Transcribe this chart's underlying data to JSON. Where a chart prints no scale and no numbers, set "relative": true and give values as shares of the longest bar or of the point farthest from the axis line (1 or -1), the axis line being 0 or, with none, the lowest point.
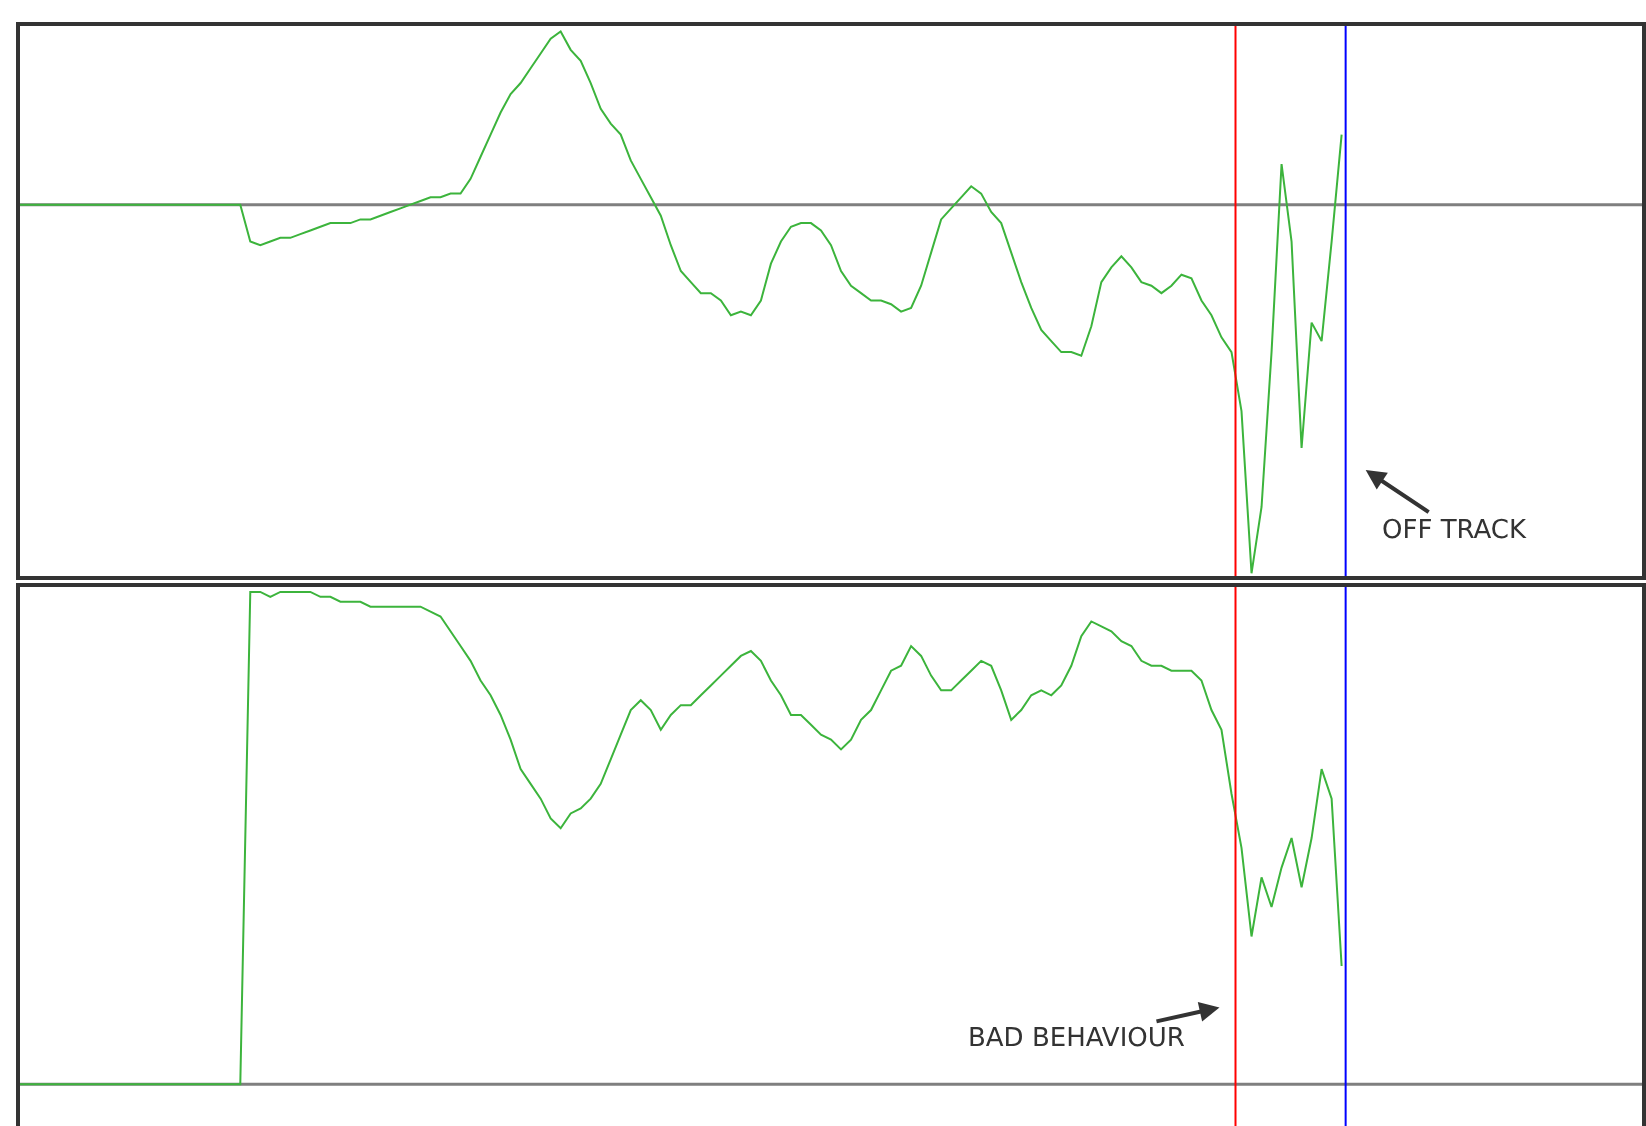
{
  "chart_data": [
    {
      "type": "line",
      "relative": true,
      "line_style": "solid",
      "categories": [
        null,
        null,
        null,
        null,
        null,
        null,
        null,
        null,
        null,
        null,
        null,
        null,
        null,
        null,
        null,
        null,
        null,
        null,
        null,
        null,
        null,
        null,
        null,
        null,
        null,
        null,
        null,
        null,
        null,
        null,
        null,
        null,
        null,
        null,
        null,
        null,
        null,
        null,
        null,
        null,
        null,
        null,
        null,
        null,
        null,
        null,
        null,
        null,
        null,
        null,
        null,
        null,
        null,
        null,
        null,
        null,
        null,
        null,
        null,
        null,
        null,
        null,
        null,
        null,
        null,
        null,
        null,
        null,
        null,
        null,
        null,
        null,
        null,
        null,
        null,
        null,
        null,
        null,
        null,
        null,
        null,
        null,
        null,
        null,
        null,
        null,
        null,
        null,
        null,
        null,
        null,
        null,
        null,
        null,
        null,
        null,
        null,
        null,
        null,
        null,
        null,
        null,
        null,
        null,
        null,
        null,
        null,
        null,
        null,
        null,
        null,
        null,
        null,
        null,
        null,
        null,
        null,
        null,
        null,
        null,
        null,
        null,
        null,
        null,
        null,
        null,
        null,
        null,
        null,
        null,
        null,
        null,
        null,
        null,
        null,
        null,
        null,
        null,
        null,
        null,
        null,
        null,
        null,
        null,
        null,
        null,
        null,
        null,
        null,
        null,
        null,
        null,
        null,
        null,
        null,
        null,
        null,
        null,
        null,
        null,
        null,
        null,
        null
      ],
      "series": [
        {
          "color": "#3cb43c",
          "values": [
            0,
            0,
            0,
            0,
            0,
            0,
            0,
            0,
            0,
            0,
            0,
            0,
            0,
            0,
            0,
            0,
            0,
            0,
            0,
            0,
            0,
            0,
            0,
            -0.1,
            -0.11,
            -0.1,
            -0.09,
            -0.09,
            -0.08,
            -0.07,
            -0.06,
            -0.05,
            -0.05,
            -0.05,
            -0.04,
            -0.04,
            -0.03,
            -0.02,
            -0.01,
            0,
            0.01,
            0.02,
            0.02,
            0.03,
            0.03,
            0.07,
            0.13,
            0.19,
            0.25,
            0.3,
            0.33,
            0.37,
            0.41,
            0.45,
            0.47,
            0.42,
            0.39,
            0.33,
            0.26,
            0.22,
            0.19,
            0.12,
            0.07,
            0.02,
            -0.03,
            -0.11,
            -0.18,
            -0.21,
            -0.24,
            -0.24,
            -0.26,
            -0.3,
            -0.29,
            -0.3,
            -0.26,
            -0.16,
            -0.1,
            -0.06,
            -0.05,
            -0.05,
            -0.07,
            -0.11,
            -0.18,
            -0.22,
            -0.24,
            -0.26,
            -0.26,
            -0.27,
            -0.29,
            -0.28,
            -0.22,
            -0.13,
            -0.04,
            -0.01,
            0.02,
            0.05,
            0.03,
            -0.02,
            -0.05,
            -0.13,
            -0.21,
            -0.28,
            -0.34,
            -0.37,
            -0.4,
            -0.4,
            -0.41,
            -0.33,
            -0.21,
            -0.17,
            -0.14,
            -0.17,
            -0.21,
            -0.22,
            -0.24,
            -0.22,
            -0.19,
            -0.2,
            -0.26,
            -0.3,
            -0.36,
            -0.4,
            -0.56,
            -1,
            -0.82,
            -0.4,
            0.11,
            -0.1,
            -0.66,
            -0.32,
            -0.37,
            -0.1,
            0.19,
            null,
            null,
            null,
            null,
            null,
            null,
            null,
            null,
            null,
            null,
            null,
            null,
            null,
            null,
            null,
            null,
            null,
            null,
            null,
            null,
            null,
            null,
            null,
            null,
            null,
            null,
            null,
            null,
            null,
            null
          ]
        }
      ],
      "annotations": [
        "OFF TRACK"
      ]
    },
    {
      "type": "line",
      "relative": true,
      "line_style": "solid",
      "categories": [
        null,
        null,
        null,
        null,
        null,
        null,
        null,
        null,
        null,
        null,
        null,
        null,
        null,
        null,
        null,
        null,
        null,
        null,
        null,
        null,
        null,
        null,
        null,
        null,
        null,
        null,
        null,
        null,
        null,
        null,
        null,
        null,
        null,
        null,
        null,
        null,
        null,
        null,
        null,
        null,
        null,
        null,
        null,
        null,
        null,
        null,
        null,
        null,
        null,
        null,
        null,
        null,
        null,
        null,
        null,
        null,
        null,
        null,
        null,
        null,
        null,
        null,
        null,
        null,
        null,
        null,
        null,
        null,
        null,
        null,
        null,
        null,
        null,
        null,
        null,
        null,
        null,
        null,
        null,
        null,
        null,
        null,
        null,
        null,
        null,
        null,
        null,
        null,
        null,
        null,
        null,
        null,
        null,
        null,
        null,
        null,
        null,
        null,
        null,
        null,
        null,
        null,
        null,
        null,
        null,
        null,
        null,
        null,
        null,
        null,
        null,
        null,
        null,
        null,
        null,
        null,
        null,
        null,
        null,
        null,
        null,
        null,
        null,
        null,
        null,
        null,
        null,
        null,
        null,
        null,
        null,
        null,
        null,
        null,
        null,
        null,
        null,
        null,
        null,
        null,
        null,
        null,
        null,
        null,
        null,
        null,
        null,
        null,
        null,
        null,
        null,
        null,
        null,
        null,
        null,
        null,
        null,
        null,
        null,
        null,
        null,
        null,
        null
      ],
      "series": [
        {
          "color": "#3cb43c",
          "values": [
            0,
            0,
            0,
            0,
            0,
            0,
            0,
            0,
            0,
            0,
            0,
            0,
            0,
            0,
            0,
            0,
            0,
            0,
            0,
            0,
            0,
            0,
            0,
            1,
            1,
            0.99,
            1,
            1,
            1,
            1,
            0.99,
            0.99,
            0.98,
            0.98,
            0.98,
            0.97,
            0.97,
            0.97,
            0.97,
            0.97,
            0.97,
            0.96,
            0.95,
            0.92,
            0.89,
            0.86,
            0.82,
            0.79,
            0.75,
            0.7,
            0.64,
            0.61,
            0.58,
            0.54,
            0.52,
            0.55,
            0.56,
            0.58,
            0.61,
            0.66,
            0.71,
            0.76,
            0.78,
            0.76,
            0.72,
            0.75,
            0.77,
            0.77,
            0.79,
            0.81,
            0.83,
            0.85,
            0.87,
            0.88,
            0.86,
            0.82,
            0.79,
            0.75,
            0.75,
            0.73,
            0.71,
            0.7,
            0.68,
            0.7,
            0.74,
            0.76,
            0.8,
            0.84,
            0.85,
            0.89,
            0.87,
            0.83,
            0.8,
            0.8,
            0.82,
            0.84,
            0.86,
            0.85,
            0.8,
            0.74,
            0.76,
            0.79,
            0.8,
            0.79,
            0.81,
            0.85,
            0.91,
            0.94,
            0.93,
            0.92,
            0.9,
            0.89,
            0.86,
            0.85,
            0.85,
            0.84,
            0.84,
            0.84,
            0.82,
            0.76,
            0.72,
            0.59,
            0.48,
            0.3,
            0.42,
            0.36,
            0.44,
            0.5,
            0.4,
            0.5,
            0.64,
            0.58,
            0.24,
            null,
            null,
            null,
            null,
            null,
            null,
            null,
            null,
            null,
            null,
            null,
            null,
            null,
            null,
            null,
            null,
            null,
            null,
            null,
            null,
            null,
            null,
            null,
            null,
            null,
            null,
            null,
            null,
            null,
            null
          ]
        }
      ],
      "annotations": [
        "BAD BEHAVIOUR"
      ]
    }
  ]
}
